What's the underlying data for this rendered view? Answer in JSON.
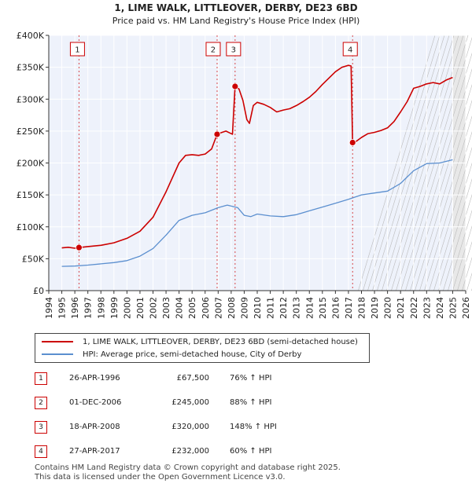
{
  "chart_data": {
    "type": "line",
    "title": "1, LIME WALK, LITTLEOVER, DERBY, DE23 6BD",
    "subtitle": "Price paid vs. HM Land Registry's House Price Index (HPI)",
    "ylim": [
      0,
      400000
    ],
    "xlim": [
      1994,
      2026
    ],
    "y_ticks": [
      {
        "value": 0,
        "label": "£0"
      },
      {
        "value": 50000,
        "label": "£50K"
      },
      {
        "value": 100000,
        "label": "£100K"
      },
      {
        "value": 150000,
        "label": "£150K"
      },
      {
        "value": 200000,
        "label": "£200K"
      },
      {
        "value": 250000,
        "label": "£250K"
      },
      {
        "value": 300000,
        "label": "£300K"
      },
      {
        "value": 350000,
        "label": "£350K"
      },
      {
        "value": 400000,
        "label": "£400K"
      }
    ],
    "x_ticks": [
      "1994",
      "1995",
      "1996",
      "1997",
      "1998",
      "1999",
      "2000",
      "2001",
      "2002",
      "2003",
      "2004",
      "2005",
      "2006",
      "2007",
      "2008",
      "2009",
      "2010",
      "2011",
      "2012",
      "2013",
      "2014",
      "2015",
      "2016",
      "2017",
      "2018",
      "2019",
      "2020",
      "2021",
      "2022",
      "2023",
      "2024",
      "2025",
      "2026"
    ],
    "series": [
      {
        "name": "1, LIME WALK, LITTLEOVER, DERBY, DE23 6BD (semi-detached house)",
        "color": "#cc0000",
        "points": [
          [
            1995.0,
            67000
          ],
          [
            1995.5,
            68000
          ],
          [
            1996.0,
            66500
          ],
          [
            1996.32,
            67500
          ],
          [
            1997.0,
            69000
          ],
          [
            1998.0,
            71000
          ],
          [
            1999.0,
            75000
          ],
          [
            2000.0,
            82000
          ],
          [
            2001.0,
            93000
          ],
          [
            2002.0,
            115000
          ],
          [
            2003.0,
            155000
          ],
          [
            2004.0,
            200000
          ],
          [
            2004.5,
            212000
          ],
          [
            2005.0,
            213000
          ],
          [
            2005.5,
            212000
          ],
          [
            2006.0,
            214000
          ],
          [
            2006.5,
            222000
          ],
          [
            2006.92,
            245000
          ],
          [
            2007.3,
            248000
          ],
          [
            2007.6,
            250000
          ],
          [
            2007.9,
            247000
          ],
          [
            2008.1,
            245000
          ],
          [
            2008.3,
            320000
          ],
          [
            2008.6,
            316000
          ],
          [
            2008.9,
            298000
          ],
          [
            2009.2,
            268000
          ],
          [
            2009.4,
            262000
          ],
          [
            2009.7,
            290000
          ],
          [
            2010.0,
            295000
          ],
          [
            2010.5,
            292000
          ],
          [
            2011.0,
            287000
          ],
          [
            2011.5,
            280000
          ],
          [
            2012.0,
            283000
          ],
          [
            2012.5,
            285000
          ],
          [
            2013.0,
            290000
          ],
          [
            2013.5,
            296000
          ],
          [
            2014.0,
            303000
          ],
          [
            2014.5,
            312000
          ],
          [
            2015.0,
            323000
          ],
          [
            2015.5,
            333000
          ],
          [
            2016.0,
            343000
          ],
          [
            2016.5,
            350000
          ],
          [
            2017.0,
            353000
          ],
          [
            2017.2,
            352000
          ],
          [
            2017.32,
            232000
          ],
          [
            2017.6,
            234000
          ],
          [
            2018.0,
            240000
          ],
          [
            2018.5,
            246000
          ],
          [
            2019.0,
            248000
          ],
          [
            2019.5,
            251000
          ],
          [
            2020.0,
            255000
          ],
          [
            2020.5,
            265000
          ],
          [
            2021.0,
            280000
          ],
          [
            2021.5,
            296000
          ],
          [
            2022.0,
            317000
          ],
          [
            2022.5,
            320000
          ],
          [
            2023.0,
            324000
          ],
          [
            2023.5,
            326000
          ],
          [
            2024.0,
            324000
          ],
          [
            2024.5,
            330000
          ],
          [
            2025.0,
            334000
          ]
        ]
      },
      {
        "name": "HPI: Average price, semi-detached house, City of Derby",
        "color": "#5b8fcf",
        "points": [
          [
            1995.0,
            38000
          ],
          [
            1996.0,
            38500
          ],
          [
            1997.0,
            40000
          ],
          [
            1998.0,
            42000
          ],
          [
            1999.0,
            44000
          ],
          [
            2000.0,
            47000
          ],
          [
            2001.0,
            54000
          ],
          [
            2002.0,
            66000
          ],
          [
            2003.0,
            87000
          ],
          [
            2004.0,
            110000
          ],
          [
            2005.0,
            118000
          ],
          [
            2006.0,
            122000
          ],
          [
            2007.0,
            130000
          ],
          [
            2007.7,
            134000
          ],
          [
            2008.5,
            130000
          ],
          [
            2009.0,
            118000
          ],
          [
            2009.5,
            116000
          ],
          [
            2010.0,
            120000
          ],
          [
            2011.0,
            117000
          ],
          [
            2012.0,
            116000
          ],
          [
            2013.0,
            119000
          ],
          [
            2014.0,
            125000
          ],
          [
            2015.0,
            131000
          ],
          [
            2016.0,
            137000
          ],
          [
            2017.0,
            143000
          ],
          [
            2018.0,
            150000
          ],
          [
            2019.0,
            153000
          ],
          [
            2020.0,
            156000
          ],
          [
            2021.0,
            168000
          ],
          [
            2022.0,
            188000
          ],
          [
            2023.0,
            199000
          ],
          [
            2024.0,
            200000
          ],
          [
            2025.0,
            205000
          ]
        ]
      }
    ],
    "sales": [
      {
        "id": "1",
        "x": 1996.32,
        "y": 67500
      },
      {
        "id": "2",
        "x": 2006.92,
        "y": 245000
      },
      {
        "id": "3",
        "x": 2008.3,
        "y": 320000
      },
      {
        "id": "4",
        "x": 2017.32,
        "y": 232000
      }
    ],
    "hatched_from": 2025.0
  },
  "legend": {
    "property_label": "1, LIME WALK, LITTLEOVER, DERBY, DE23 6BD (semi-detached house)",
    "hpi_label": "HPI: Average price, semi-detached house, City of Derby"
  },
  "transactions": [
    {
      "num": "1",
      "date": "26-APR-1996",
      "price": "£67,500",
      "hpi": "76% ↑ HPI"
    },
    {
      "num": "2",
      "date": "01-DEC-2006",
      "price": "£245,000",
      "hpi": "88% ↑ HPI"
    },
    {
      "num": "3",
      "date": "18-APR-2008",
      "price": "£320,000",
      "hpi": "148% ↑ HPI"
    },
    {
      "num": "4",
      "date": "27-APR-2017",
      "price": "£232,000",
      "hpi": "60% ↑ HPI"
    }
  ],
  "footer": {
    "line1": "Contains HM Land Registry data © Crown copyright and database right 2025.",
    "line2": "This data is licensed under the Open Government Licence v3.0."
  },
  "colors": {
    "red": "#cc0000",
    "blue": "#5b8fcf",
    "grid": "#dddddd",
    "plot_bg": "#eef2fb"
  }
}
